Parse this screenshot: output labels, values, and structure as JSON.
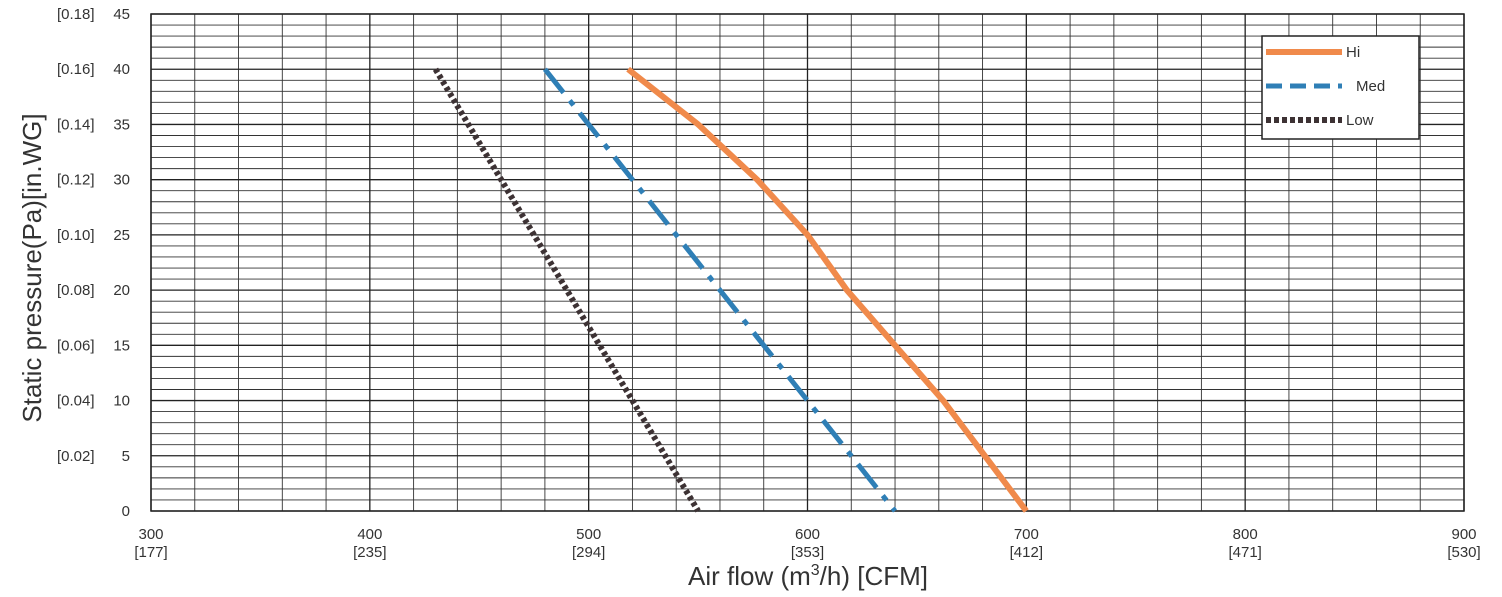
{
  "chart_data": {
    "type": "line",
    "title": "",
    "xlabel": "Air flow (m3/h) [CFM]",
    "xlabel_parts": {
      "pre": "Air flow (m",
      "sup": "3",
      "post": "/h) [CFM]"
    },
    "ylabel": "Static pressure(Pa)[in.WG]",
    "xlim": [
      300,
      900
    ],
    "ylim": [
      0,
      45
    ],
    "grid": true,
    "legend_position": "top-right",
    "x_ticks": [
      {
        "value": 300,
        "label": "300",
        "sub": "[177]"
      },
      {
        "value": 400,
        "label": "400",
        "sub": "[235]"
      },
      {
        "value": 500,
        "label": "500",
        "sub": "[294]"
      },
      {
        "value": 600,
        "label": "600",
        "sub": "[353]"
      },
      {
        "value": 700,
        "label": "700",
        "sub": "[412]"
      },
      {
        "value": 800,
        "label": "800",
        "sub": "[471]"
      },
      {
        "value": 900,
        "label": "900",
        "sub": "[530]"
      }
    ],
    "y_ticks": [
      {
        "value": 0,
        "label": "0",
        "alt": ""
      },
      {
        "value": 5,
        "label": "5",
        "alt": "[0.02]"
      },
      {
        "value": 10,
        "label": "10",
        "alt": "[0.04]"
      },
      {
        "value": 15,
        "label": "15",
        "alt": "[0.06]"
      },
      {
        "value": 20,
        "label": "20",
        "alt": "[0.08]"
      },
      {
        "value": 25,
        "label": "25",
        "alt": "[0.10]"
      },
      {
        "value": 30,
        "label": "30",
        "alt": "[0.12]"
      },
      {
        "value": 35,
        "label": "35",
        "alt": "[0.14]"
      },
      {
        "value": 40,
        "label": "40",
        "alt": "[0.16]"
      },
      {
        "value": 45,
        "label": "45",
        "alt": "[0.18]"
      }
    ],
    "series": [
      {
        "name": "Hi",
        "color": "#f08a4b",
        "style": "solid",
        "points": [
          [
            518,
            40
          ],
          [
            550,
            35
          ],
          [
            577,
            30
          ],
          [
            600,
            25
          ],
          [
            618,
            20
          ],
          [
            640,
            15
          ],
          [
            662,
            10
          ],
          [
            681,
            5
          ],
          [
            700,
            0
          ]
        ]
      },
      {
        "name": "Med",
        "color": "#2f7fb6",
        "style": "dashed",
        "points": [
          [
            480,
            40
          ],
          [
            640,
            0
          ]
        ]
      },
      {
        "name": "Low",
        "color": "#3d3234",
        "style": "dotted",
        "points": [
          [
            430,
            40
          ],
          [
            550,
            0
          ]
        ]
      }
    ]
  }
}
